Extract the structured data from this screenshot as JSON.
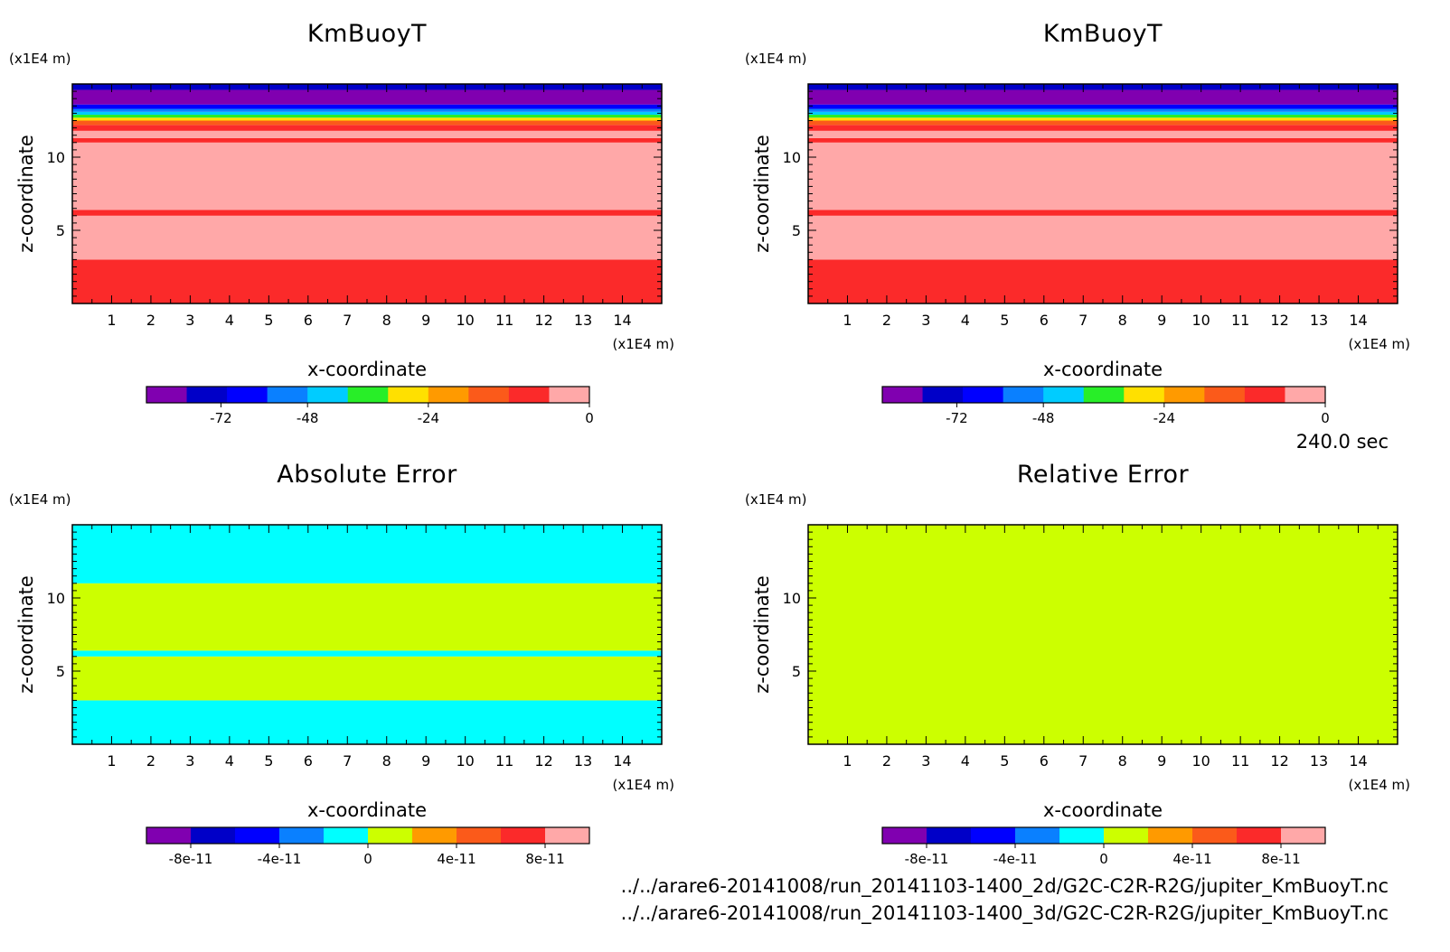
{
  "footer": {
    "time": "240.0 sec",
    "files": [
      "../../arare6-20141008/run_20141103-1400_2d/G2C-C2R-R2G/jupiter_KmBuoyT.nc",
      "../../arare6-20141008/run_20141103-1400_3d/G2C-C2R-R2G/jupiter_KmBuoyT.nc"
    ]
  },
  "chart_data": [
    {
      "type": "heatmap",
      "title": "KmBuoyT",
      "xlabel": "x-coordinate",
      "ylabel": "z-coordinate",
      "x_unit": "(x1E4 m)",
      "y_unit": "(x1E4 m)",
      "xlim": [
        0,
        15
      ],
      "ylim": [
        0,
        15
      ],
      "xticks": [
        "1",
        "2",
        "3",
        "4",
        "5",
        "6",
        "7",
        "8",
        "9",
        "10",
        "11",
        "12",
        "13",
        "14"
      ],
      "yticks": [
        "5",
        "10"
      ],
      "bands": [
        {
          "z": [
            0.0,
            3.0
          ],
          "color": "#fb2a2a"
        },
        {
          "z": [
            3.0,
            6.0
          ],
          "color": "#ffa8a8"
        },
        {
          "z": [
            6.0,
            6.4
          ],
          "color": "#fb2a2a"
        },
        {
          "z": [
            6.4,
            11.0
          ],
          "color": "#ffa8a8"
        },
        {
          "z": [
            11.0,
            11.3
          ],
          "color": "#fb2a2a"
        },
        {
          "z": [
            11.3,
            11.8
          ],
          "color": "#ffa8a8"
        },
        {
          "z": [
            11.8,
            12.2
          ],
          "color": "#fb2a2a"
        },
        {
          "z": [
            12.2,
            12.5
          ],
          "color": "#fb5a1a"
        },
        {
          "z": [
            12.5,
            12.7
          ],
          "color": "#ffe000"
        },
        {
          "z": [
            12.7,
            12.9
          ],
          "color": "#28ee28"
        },
        {
          "z": [
            12.9,
            13.1
          ],
          "color": "#00ccff"
        },
        {
          "z": [
            13.1,
            13.3
          ],
          "color": "#0a80ff"
        },
        {
          "z": [
            13.3,
            13.6
          ],
          "color": "#0000ff"
        },
        {
          "z": [
            13.6,
            14.6
          ],
          "color": "#8000b0"
        },
        {
          "z": [
            14.6,
            15.0
          ],
          "color": "#0000c8"
        }
      ],
      "colorbar": {
        "colors": [
          "#8000b0",
          "#0000c8",
          "#0000ff",
          "#0a80ff",
          "#00ccff",
          "#28ee28",
          "#ffe000",
          "#ff9a00",
          "#fb5a1a",
          "#fb2a2a",
          "#ffa8a8"
        ],
        "labels": [
          "-72",
          "-48",
          "-24",
          "0"
        ]
      }
    },
    {
      "type": "heatmap",
      "title": "KmBuoyT",
      "xlabel": "x-coordinate",
      "ylabel": "z-coordinate",
      "x_unit": "(x1E4 m)",
      "y_unit": "(x1E4 m)",
      "xlim": [
        0,
        15
      ],
      "ylim": [
        0,
        15
      ],
      "xticks": [
        "1",
        "2",
        "3",
        "4",
        "5",
        "6",
        "7",
        "8",
        "9",
        "10",
        "11",
        "12",
        "13",
        "14"
      ],
      "yticks": [
        "5",
        "10"
      ],
      "bands": [
        {
          "z": [
            0.0,
            3.0
          ],
          "color": "#fb2a2a"
        },
        {
          "z": [
            3.0,
            6.0
          ],
          "color": "#ffa8a8"
        },
        {
          "z": [
            6.0,
            6.4
          ],
          "color": "#fb2a2a"
        },
        {
          "z": [
            6.4,
            11.0
          ],
          "color": "#ffa8a8"
        },
        {
          "z": [
            11.0,
            11.3
          ],
          "color": "#fb2a2a"
        },
        {
          "z": [
            11.3,
            11.8
          ],
          "color": "#ffa8a8"
        },
        {
          "z": [
            11.8,
            12.2
          ],
          "color": "#fb2a2a"
        },
        {
          "z": [
            12.2,
            12.5
          ],
          "color": "#fb5a1a"
        },
        {
          "z": [
            12.5,
            12.7
          ],
          "color": "#ffe000"
        },
        {
          "z": [
            12.7,
            12.9
          ],
          "color": "#28ee28"
        },
        {
          "z": [
            12.9,
            13.1
          ],
          "color": "#00ccff"
        },
        {
          "z": [
            13.1,
            13.3
          ],
          "color": "#0a80ff"
        },
        {
          "z": [
            13.3,
            13.6
          ],
          "color": "#0000ff"
        },
        {
          "z": [
            13.6,
            14.6
          ],
          "color": "#8000b0"
        },
        {
          "z": [
            14.6,
            15.0
          ],
          "color": "#0000c8"
        }
      ],
      "colorbar": {
        "colors": [
          "#8000b0",
          "#0000c8",
          "#0000ff",
          "#0a80ff",
          "#00ccff",
          "#28ee28",
          "#ffe000",
          "#ff9a00",
          "#fb5a1a",
          "#fb2a2a",
          "#ffa8a8"
        ],
        "labels": [
          "-72",
          "-48",
          "-24",
          "0"
        ]
      }
    },
    {
      "type": "heatmap",
      "title": "Absolute Error",
      "xlabel": "x-coordinate",
      "ylabel": "z-coordinate",
      "x_unit": "(x1E4 m)",
      "y_unit": "(x1E4 m)",
      "xlim": [
        0,
        15
      ],
      "ylim": [
        0,
        15
      ],
      "xticks": [
        "1",
        "2",
        "3",
        "4",
        "5",
        "6",
        "7",
        "8",
        "9",
        "10",
        "11",
        "12",
        "13",
        "14"
      ],
      "yticks": [
        "5",
        "10"
      ],
      "bands": [
        {
          "z": [
            0.0,
            3.0
          ],
          "color": "#00ffff"
        },
        {
          "z": [
            3.0,
            6.0
          ],
          "color": "#ccff00"
        },
        {
          "z": [
            6.0,
            6.4
          ],
          "color": "#00ffff"
        },
        {
          "z": [
            6.4,
            11.0
          ],
          "color": "#ccff00"
        },
        {
          "z": [
            11.0,
            15.0
          ],
          "color": "#00ffff"
        }
      ],
      "colorbar": {
        "colors": [
          "#8000b0",
          "#0000c8",
          "#0000ff",
          "#0a80ff",
          "#00ffff",
          "#ccff00",
          "#ff9a00",
          "#fb5a1a",
          "#fb2a2a",
          "#ffa8a8"
        ],
        "labels": [
          "-8e-11",
          "-4e-11",
          "0",
          "4e-11",
          "8e-11"
        ]
      }
    },
    {
      "type": "heatmap",
      "title": "Relative Error",
      "xlabel": "x-coordinate",
      "ylabel": "z-coordinate",
      "x_unit": "(x1E4 m)",
      "y_unit": "(x1E4 m)",
      "xlim": [
        0,
        15
      ],
      "ylim": [
        0,
        15
      ],
      "xticks": [
        "1",
        "2",
        "3",
        "4",
        "5",
        "6",
        "7",
        "8",
        "9",
        "10",
        "11",
        "12",
        "13",
        "14"
      ],
      "yticks": [
        "5",
        "10"
      ],
      "bands": [
        {
          "z": [
            0.0,
            15.0
          ],
          "color": "#ccff00"
        }
      ],
      "colorbar": {
        "colors": [
          "#8000b0",
          "#0000c8",
          "#0000ff",
          "#0a80ff",
          "#00ffff",
          "#ccff00",
          "#ff9a00",
          "#fb5a1a",
          "#fb2a2a",
          "#ffa8a8"
        ],
        "labels": [
          "-8e-11",
          "-4e-11",
          "0",
          "4e-11",
          "8e-11"
        ]
      }
    }
  ]
}
